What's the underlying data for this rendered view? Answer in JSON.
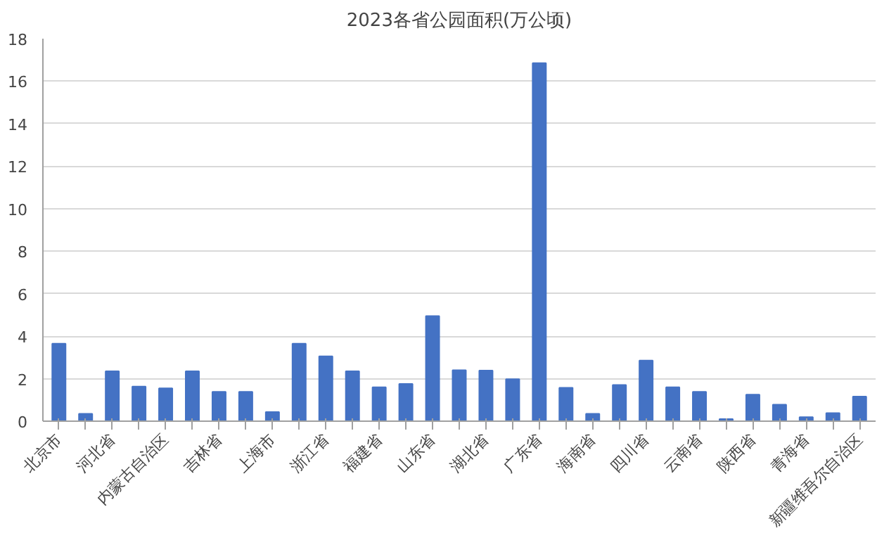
{
  "chart_data": {
    "type": "bar",
    "title": "2023各省公园面积(万公顷)",
    "categories": [
      "北京市",
      null,
      "河北省",
      null,
      "内蒙古自治区",
      null,
      "吉林省",
      null,
      "上海市",
      null,
      "浙江省",
      null,
      "福建省",
      null,
      "山东省",
      null,
      "湖北省",
      null,
      "广东省",
      null,
      "海南省",
      null,
      "四川省",
      null,
      "云南省",
      null,
      "陕西省",
      null,
      "青海省",
      null,
      "新疆维吾尔自治区"
    ],
    "values": [
      3.65,
      0.35,
      2.35,
      1.63,
      1.55,
      2.35,
      1.38,
      1.38,
      0.43,
      3.65,
      3.05,
      2.35,
      1.6,
      1.75,
      4.95,
      2.4,
      2.38,
      1.98,
      16.85,
      1.57,
      0.35,
      1.7,
      2.85,
      1.6,
      1.38,
      0.1,
      1.25,
      0.78,
      0.19,
      0.38,
      1.16
    ],
    "color": "#4472c4",
    "ylim": [
      0,
      18
    ],
    "yticks": [
      0,
      2,
      4,
      6,
      8,
      10,
      12,
      14,
      16,
      18
    ],
    "grid": "y"
  }
}
